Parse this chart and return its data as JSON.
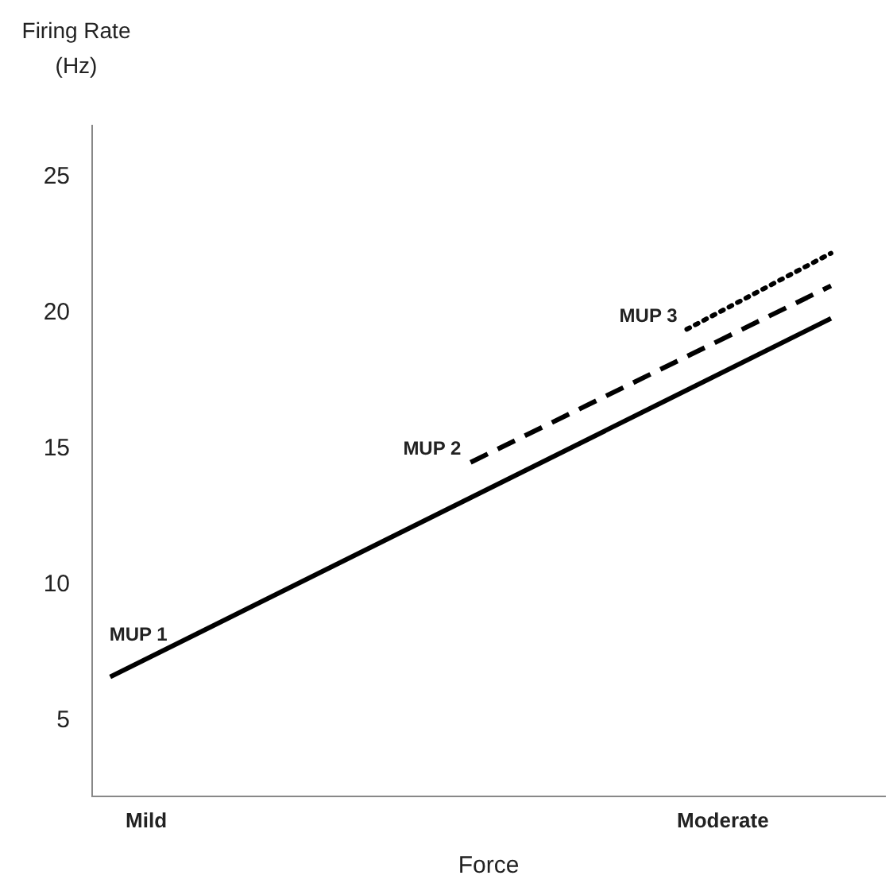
{
  "chart_data": {
    "type": "line",
    "ylabel": "Firing Rate (Hz)",
    "xlabel": "Force",
    "categories": [
      null,
      "Mild",
      null,
      null,
      null,
      null,
      null,
      null,
      null,
      null,
      null,
      null,
      null,
      null,
      null,
      null,
      null,
      "Moderate",
      null,
      null,
      null,
      null
    ],
    "ylim": [
      2.2,
      26.9
    ],
    "yticks": [
      5,
      10,
      15,
      20,
      25
    ],
    "marker": "none",
    "series": [
      {
        "name": "MUP 1",
        "color": "#000000",
        "line_style": "solid",
        "values": [
          6.6,
          null,
          null,
          null,
          null,
          null,
          null,
          null,
          null,
          null,
          null,
          null,
          null,
          null,
          null,
          null,
          null,
          null,
          null,
          null,
          19.8,
          null
        ]
      },
      {
        "name": "MUP 2",
        "color": "#000000",
        "line_style": "dashed",
        "values": [
          null,
          null,
          null,
          null,
          null,
          null,
          null,
          null,
          null,
          null,
          14.5,
          null,
          null,
          null,
          null,
          null,
          null,
          null,
          null,
          null,
          21.0,
          null
        ]
      },
      {
        "name": "MUP 3",
        "color": "#000000",
        "line_style": "dotted",
        "values": [
          null,
          null,
          null,
          null,
          null,
          null,
          null,
          null,
          null,
          null,
          null,
          null,
          null,
          null,
          null,
          null,
          19.4,
          null,
          null,
          null,
          22.2,
          null
        ]
      }
    ]
  }
}
